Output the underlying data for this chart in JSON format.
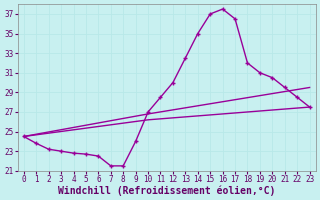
{
  "xlabel": "Windchill (Refroidissement éolien,°C)",
  "bg_color": "#c8f0f0",
  "line_color": "#990099",
  "grid_color": "#b8e8e8",
  "xlim": [
    -0.5,
    23.5
  ],
  "ylim": [
    21,
    38
  ],
  "yticks": [
    21,
    23,
    25,
    27,
    29,
    31,
    33,
    35,
    37
  ],
  "xticks": [
    0,
    1,
    2,
    3,
    4,
    5,
    6,
    7,
    8,
    9,
    10,
    11,
    12,
    13,
    14,
    15,
    16,
    17,
    18,
    19,
    20,
    21,
    22,
    23
  ],
  "line1_x": [
    0,
    1,
    2,
    3,
    4,
    5,
    6,
    7,
    8,
    9,
    10,
    11,
    12,
    13,
    14,
    15,
    16,
    17,
    18,
    19,
    20,
    21,
    22,
    23
  ],
  "line1_y": [
    24.5,
    23.8,
    23.2,
    23.0,
    22.8,
    22.7,
    22.5,
    21.5,
    21.5,
    24.0,
    27.0,
    28.5,
    30.0,
    32.5,
    35.0,
    37.0,
    37.5,
    36.5,
    32.0,
    31.0,
    30.5,
    29.5,
    28.5,
    27.5
  ],
  "line2_x": [
    0,
    10,
    23
  ],
  "line2_y": [
    24.5,
    26.2,
    27.5
  ],
  "line3_x": [
    0,
    10,
    23
  ],
  "line3_y": [
    24.5,
    26.8,
    29.5
  ],
  "marker": "+",
  "markersize": 3.5,
  "linewidth": 1.0,
  "tick_fontsize": 5.5,
  "xlabel_fontsize": 7.0
}
